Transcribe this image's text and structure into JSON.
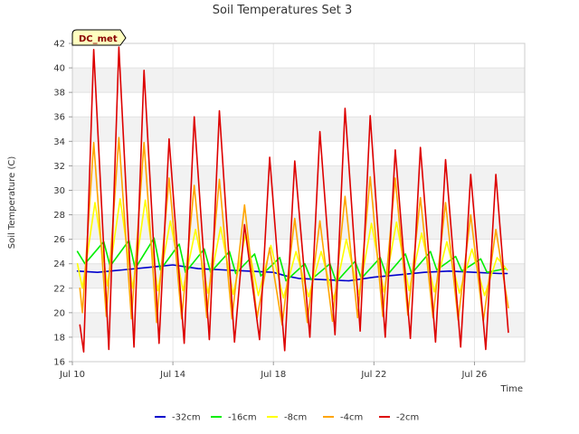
{
  "chart_data": {
    "type": "line",
    "title": "Soil Temperatures Set 3",
    "xlabel": "Time",
    "ylabel": "Soil Temperature (C)",
    "badge": "DC_met",
    "x_start": "2023-07-10",
    "xlim_days": [
      0,
      18
    ],
    "x_ticks": [
      {
        "day": 0,
        "label": "Jul 10"
      },
      {
        "day": 4,
        "label": "Jul 14"
      },
      {
        "day": 8,
        "label": "Jul 18"
      },
      {
        "day": 12,
        "label": "Jul 22"
      },
      {
        "day": 16,
        "label": "Jul 26"
      }
    ],
    "ylim": [
      16,
      42
    ],
    "y_ticks": [
      16,
      18,
      20,
      22,
      24,
      26,
      28,
      30,
      32,
      34,
      36,
      38,
      40,
      42
    ],
    "legend_position": "bottom",
    "series": [
      {
        "name": "-32cm",
        "color": "#0000cc",
        "x": [
          0.2,
          1,
          2,
          3,
          3.5,
          4,
          5,
          6,
          7,
          8,
          8.5,
          9,
          10,
          11,
          12,
          13,
          14,
          15,
          16,
          17,
          17.3
        ],
        "y": [
          23.4,
          23.3,
          23.5,
          23.7,
          23.8,
          23.9,
          23.6,
          23.5,
          23.4,
          23.3,
          23.0,
          22.8,
          22.7,
          22.6,
          22.9,
          23.1,
          23.3,
          23.4,
          23.3,
          23.2,
          23.2
        ]
      },
      {
        "name": "-16cm",
        "color": "#00ee00",
        "x": [
          0.2,
          0.5,
          1.25,
          1.5,
          2.25,
          2.5,
          3.25,
          3.5,
          4.25,
          4.5,
          5.25,
          5.5,
          6.25,
          6.5,
          7.25,
          7.5,
          8.25,
          8.5,
          9.25,
          9.5,
          10.25,
          10.5,
          11.25,
          11.5,
          12.25,
          12.5,
          13.25,
          13.5,
          14.25,
          14.5,
          15.25,
          15.5,
          16.25,
          16.5,
          17.25
        ],
        "y": [
          25.0,
          24.0,
          25.8,
          23.8,
          25.9,
          23.6,
          26.1,
          23.5,
          25.6,
          23.3,
          25.2,
          23.3,
          25.0,
          23.2,
          24.8,
          23.0,
          24.5,
          22.6,
          24.0,
          22.7,
          24.0,
          22.5,
          24.2,
          22.8,
          24.5,
          23.0,
          24.8,
          23.2,
          25.0,
          23.5,
          24.6,
          23.4,
          24.4,
          23.3,
          23.6
        ]
      },
      {
        "name": "-8cm",
        "color": "#ffff00",
        "x": [
          0.2,
          0.4,
          0.9,
          1.4,
          1.9,
          2.4,
          2.9,
          3.4,
          3.9,
          4.4,
          4.9,
          5.4,
          5.9,
          6.4,
          6.9,
          7.4,
          7.9,
          8.4,
          8.9,
          9.4,
          9.9,
          10.4,
          10.9,
          11.4,
          11.9,
          12.4,
          12.9,
          13.4,
          13.9,
          14.4,
          14.9,
          15.4,
          15.9,
          16.4,
          16.9,
          17.3
        ],
        "y": [
          24.0,
          22.0,
          29.0,
          22.2,
          29.3,
          22.0,
          29.2,
          21.8,
          27.5,
          21.8,
          26.8,
          21.6,
          27.0,
          21.5,
          26.5,
          21.4,
          25.5,
          21.2,
          25.0,
          21.3,
          25.0,
          21.1,
          26.0,
          21.5,
          27.3,
          21.7,
          27.4,
          21.8,
          26.5,
          21.7,
          25.8,
          21.6,
          25.2,
          21.4,
          24.5,
          23.5
        ]
      },
      {
        "name": "-4cm",
        "color": "#ffa500",
        "x": [
          0.3,
          0.4,
          0.85,
          1.35,
          1.85,
          2.35,
          2.85,
          3.35,
          3.85,
          4.35,
          4.85,
          5.35,
          5.85,
          6.35,
          6.85,
          7.35,
          7.85,
          8.35,
          8.85,
          9.35,
          9.85,
          10.35,
          10.85,
          11.35,
          11.85,
          12.35,
          12.85,
          13.35,
          13.85,
          14.35,
          14.85,
          15.35,
          15.85,
          16.35,
          16.85,
          17.35
        ],
        "y": [
          22.0,
          20.0,
          33.9,
          19.7,
          34.3,
          19.5,
          33.9,
          19.2,
          31.0,
          19.5,
          30.4,
          19.6,
          30.9,
          19.5,
          28.8,
          19.6,
          25.3,
          19.0,
          27.7,
          19.2,
          27.5,
          19.3,
          29.5,
          19.6,
          31.1,
          19.7,
          31.0,
          19.8,
          29.4,
          19.6,
          29.0,
          19.4,
          28.0,
          19.3,
          26.8,
          20.4
        ]
      },
      {
        "name": "-2cm",
        "color": "#dd0000",
        "x": [
          0.3,
          0.45,
          0.85,
          1.45,
          1.85,
          2.45,
          2.85,
          3.45,
          3.85,
          4.45,
          4.85,
          5.45,
          5.85,
          6.45,
          6.85,
          7.45,
          7.85,
          8.45,
          8.85,
          9.45,
          9.85,
          10.45,
          10.85,
          11.45,
          11.85,
          12.45,
          12.85,
          13.45,
          13.85,
          14.45,
          14.85,
          15.45,
          15.85,
          16.45,
          16.85,
          17.35
        ],
        "y": [
          19.0,
          16.8,
          41.5,
          17.0,
          41.7,
          17.2,
          39.8,
          17.5,
          34.2,
          17.5,
          36.0,
          17.8,
          36.5,
          17.6,
          27.2,
          17.8,
          32.7,
          16.9,
          32.4,
          18.0,
          34.8,
          18.2,
          36.7,
          18.5,
          36.1,
          18.0,
          33.3,
          17.9,
          33.5,
          17.6,
          32.5,
          17.2,
          31.3,
          17.0,
          31.3,
          18.4
        ]
      }
    ]
  }
}
